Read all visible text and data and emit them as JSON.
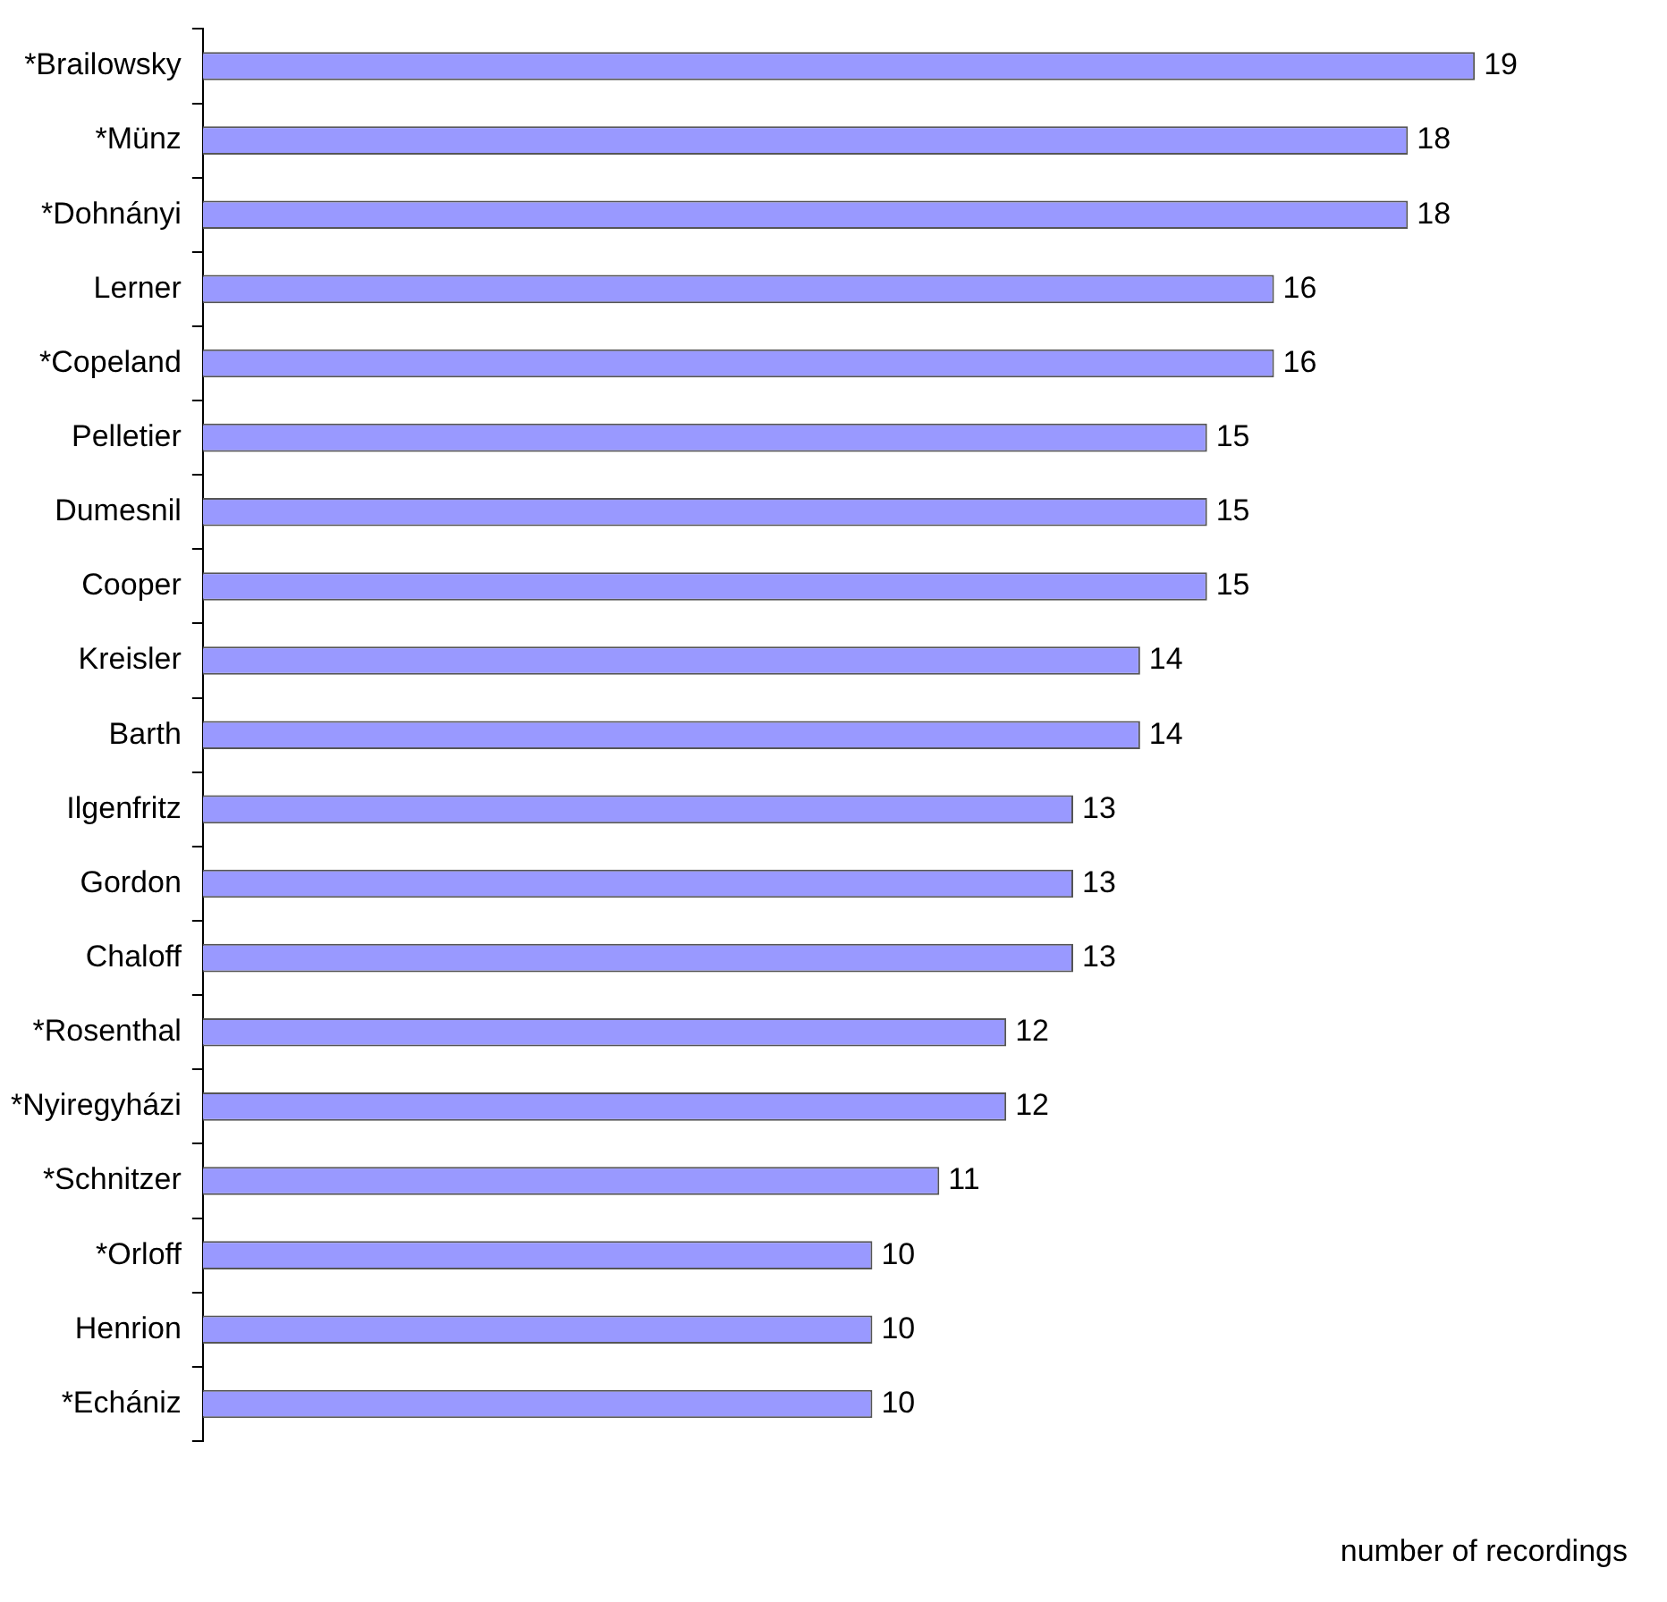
{
  "chart_data": {
    "type": "bar",
    "orientation": "horizontal",
    "xlabel": "number of recordings",
    "categories": [
      "*Brailowsky",
      "*Münz",
      "*Dohnányi",
      "Lerner",
      "*Copeland",
      "Pelletier",
      "Dumesnil",
      "Cooper",
      "Kreisler",
      "Barth",
      "Ilgenfritz",
      "Gordon",
      "Chaloff",
      "*Rosenthal",
      "*Nyiregyházi",
      "*Schnitzer",
      "*Orloff",
      "Henrion",
      "*Echániz"
    ],
    "values": [
      19,
      18,
      18,
      16,
      16,
      15,
      15,
      15,
      14,
      14,
      13,
      13,
      13,
      12,
      12,
      11,
      10,
      10,
      10
    ],
    "color": "#9999ff",
    "data_labels": true,
    "legend": false
  }
}
